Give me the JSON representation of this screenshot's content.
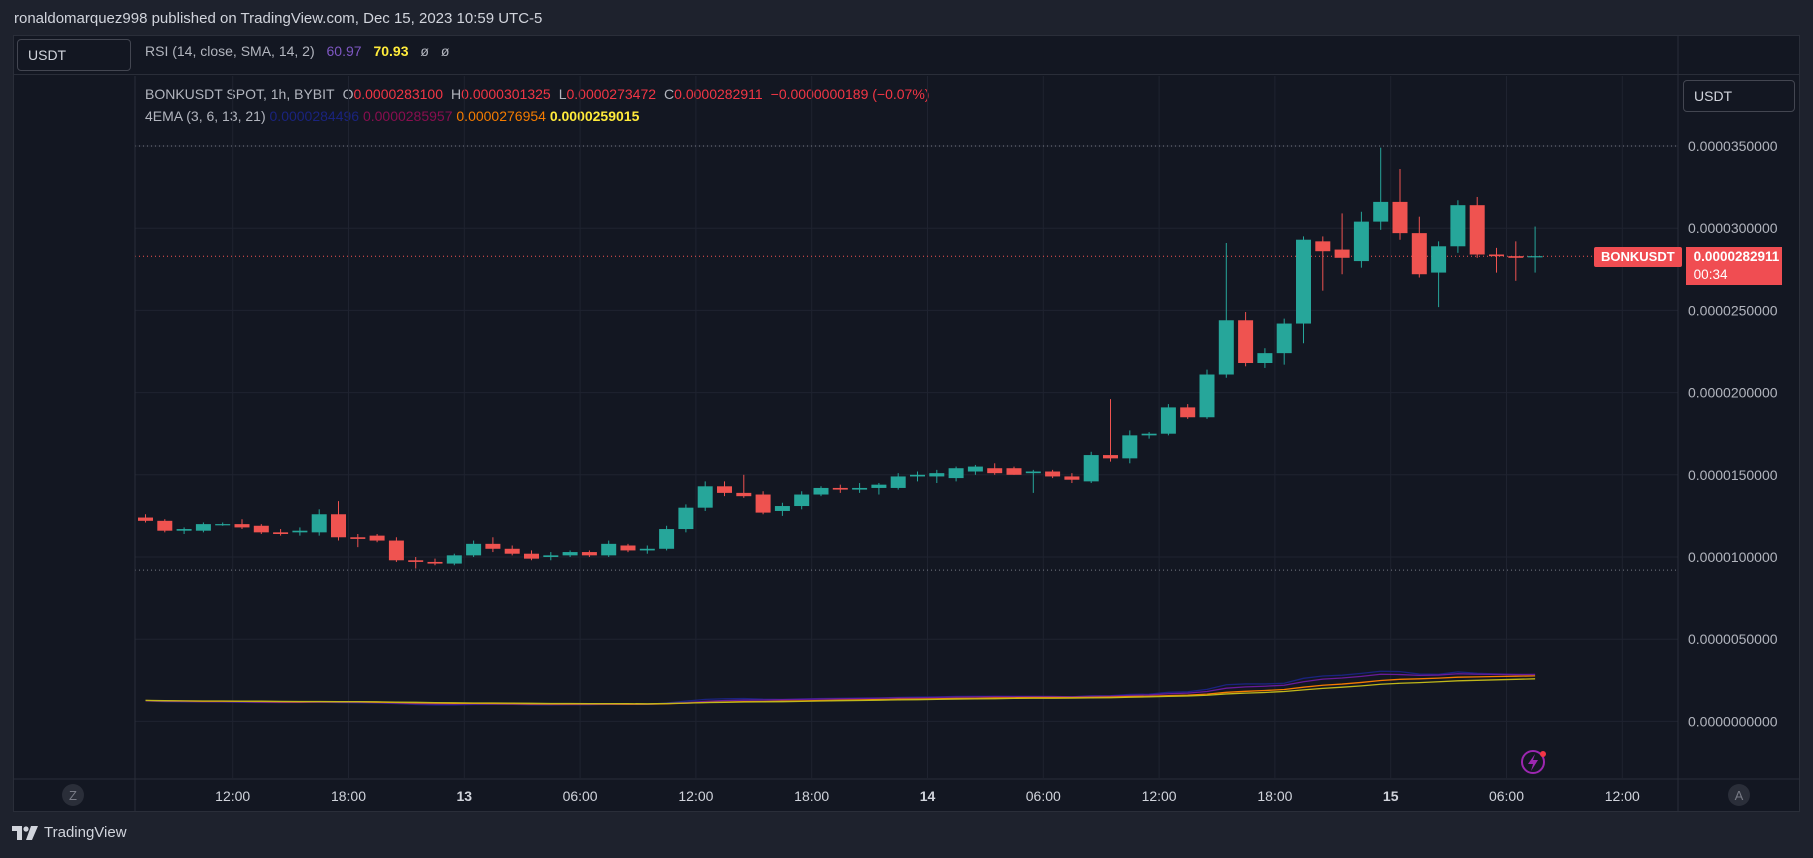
{
  "header": {
    "published": "ronaldomarquez998 published on TradingView.com, Dec 15, 2023 10:59 UTC-5"
  },
  "toolbar": {
    "left_currency": "USDT",
    "right_currency": "USDT"
  },
  "rsi": {
    "label": "RSI (14, close, SMA, 14, 2)",
    "value1": "60.97",
    "value2": "70.93",
    "value3": "ø",
    "value4": "ø",
    "value1_color": "#7e57c2",
    "value2_color": "#ffeb3b"
  },
  "legend": {
    "symbol": "BONKUSDT SPOT, 1h, BYBIT",
    "o_label": "O",
    "o_value": "0.0000283100",
    "h_label": "H",
    "h_value": "0.0000301325",
    "l_label": "L",
    "l_value": "0.0000273472",
    "c_label": "C",
    "c_value": "0.0000282911",
    "change": "−0.0000000189 (−0.07%)"
  },
  "ema": {
    "label": "4EMA (3, 6, 13, 21)",
    "values": [
      {
        "text": "0.0000284496",
        "color": "#1a237e"
      },
      {
        "text": "0.0000285957",
        "color": "#880e4f"
      },
      {
        "text": "0.0000276954",
        "color": "#f57c00"
      },
      {
        "text": "0.0000259015",
        "color": "#ffeb3b"
      }
    ]
  },
  "price_tag": {
    "symbol": "BONKUSDT",
    "price": "0.0000282911",
    "countdown": "00:34"
  },
  "controls": {
    "z_button": "Z",
    "a_button": "A"
  },
  "brand": {
    "name": "TradingView"
  },
  "colors": {
    "up": "#26a69a",
    "down": "#ef5350",
    "ema3": "#1a237e",
    "ema6": "#6a1b9a",
    "ema13": "#f57c00",
    "ema21": "#c0b81a"
  },
  "chart_data": {
    "type": "candlestick",
    "symbol": "BONKUSDT SPOT, 1h, BYBIT",
    "y_unit_scale": "1e-7",
    "ylim": [
      -6e-07,
      3.88e-05
    ],
    "y_ticks": [
      {
        "value": 3.5e-05,
        "label": "0.0000350000"
      },
      {
        "value": 3e-05,
        "label": "0.0000300000"
      },
      {
        "value": 2.5e-05,
        "label": "0.0000250000"
      },
      {
        "value": 2e-05,
        "label": "0.0000200000"
      },
      {
        "value": 1.5e-05,
        "label": "0.0000150000"
      },
      {
        "value": 1e-05,
        "label": "0.0000100000"
      },
      {
        "value": 5e-06,
        "label": "0.0000050000"
      },
      {
        "value": 0.0,
        "label": "0.0000000000"
      }
    ],
    "x_ticks": [
      {
        "time": "Dec 12 12:00",
        "label": "12:00",
        "bold": false
      },
      {
        "time": "Dec 12 18:00",
        "label": "18:00",
        "bold": false
      },
      {
        "time": "Dec 13 00:00",
        "label": "13",
        "bold": true
      },
      {
        "time": "Dec 13 06:00",
        "label": "06:00",
        "bold": false
      },
      {
        "time": "Dec 13 12:00",
        "label": "12:00",
        "bold": false
      },
      {
        "time": "Dec 13 18:00",
        "label": "18:00",
        "bold": false
      },
      {
        "time": "Dec 14 00:00",
        "label": "14",
        "bold": true
      },
      {
        "time": "Dec 14 06:00",
        "label": "06:00",
        "bold": false
      },
      {
        "time": "Dec 14 12:00",
        "label": "12:00",
        "bold": false
      },
      {
        "time": "Dec 14 18:00",
        "label": "18:00",
        "bold": false
      },
      {
        "time": "Dec 15 00:00",
        "label": "15",
        "bold": true
      },
      {
        "time": "Dec 15 06:00",
        "label": "06:00",
        "bold": false
      },
      {
        "time": "Dec 15 12:00",
        "label": "12:00",
        "bold": false
      }
    ],
    "first_bar": "Dec 12 08:00",
    "bar_interval": "1h",
    "candles": [
      {
        "o": 1.24e-05,
        "h": 1.26e-05,
        "l": 1.21e-05,
        "c": 1.22e-05
      },
      {
        "o": 1.22e-05,
        "h": 1.23e-05,
        "l": 1.15e-05,
        "c": 1.16e-05
      },
      {
        "o": 1.16e-05,
        "h": 1.18e-05,
        "l": 1.14e-05,
        "c": 1.17e-05
      },
      {
        "o": 1.16e-05,
        "h": 1.21e-05,
        "l": 1.15e-05,
        "c": 1.2e-05
      },
      {
        "o": 1.2e-05,
        "h": 1.21e-05,
        "l": 1.19e-05,
        "c": 1.2e-05
      },
      {
        "o": 1.2e-05,
        "h": 1.23e-05,
        "l": 1.17e-05,
        "c": 1.18e-05
      },
      {
        "o": 1.19e-05,
        "h": 1.2e-05,
        "l": 1.14e-05,
        "c": 1.15e-05
      },
      {
        "o": 1.15e-05,
        "h": 1.17e-05,
        "l": 1.13e-05,
        "c": 1.14e-05
      },
      {
        "o": 1.15e-05,
        "h": 1.18e-05,
        "l": 1.13e-05,
        "c": 1.16e-05
      },
      {
        "o": 1.15e-05,
        "h": 1.29e-05,
        "l": 1.13e-05,
        "c": 1.26e-05
      },
      {
        "o": 1.26e-05,
        "h": 1.34e-05,
        "l": 1.1e-05,
        "c": 1.12e-05
      },
      {
        "o": 1.12e-05,
        "h": 1.14e-05,
        "l": 1.06e-05,
        "c": 1.11e-05
      },
      {
        "o": 1.13e-05,
        "h": 1.14e-05,
        "l": 1.09e-05,
        "c": 1.1e-05
      },
      {
        "o": 1.1e-05,
        "h": 1.12e-05,
        "l": 9.7e-06,
        "c": 9.8e-06
      },
      {
        "o": 9.8e-06,
        "h": 1e-05,
        "l": 9.3e-06,
        "c": 9.7e-06
      },
      {
        "o": 9.7e-06,
        "h": 9.9e-06,
        "l": 9.5e-06,
        "c": 9.6e-06
      },
      {
        "o": 9.6e-06,
        "h": 1.02e-05,
        "l": 9.5e-06,
        "c": 1.01e-05
      },
      {
        "o": 1.01e-05,
        "h": 1.1e-05,
        "l": 1e-05,
        "c": 1.08e-05
      },
      {
        "o": 1.08e-05,
        "h": 1.12e-05,
        "l": 1.03e-05,
        "c": 1.05e-05
      },
      {
        "o": 1.05e-05,
        "h": 1.07e-05,
        "l": 1.01e-05,
        "c": 1.02e-05
      },
      {
        "o": 1.02e-05,
        "h": 1.04e-05,
        "l": 9.8e-06,
        "c": 9.9e-06
      },
      {
        "o": 1e-05,
        "h": 1.03e-05,
        "l": 9.8e-06,
        "c": 1.01e-05
      },
      {
        "o": 1.01e-05,
        "h": 1.04e-05,
        "l": 1e-05,
        "c": 1.03e-05
      },
      {
        "o": 1.03e-05,
        "h": 1.04e-05,
        "l": 1e-05,
        "c": 1.01e-05
      },
      {
        "o": 1.01e-05,
        "h": 1.1e-05,
        "l": 1e-05,
        "c": 1.08e-05
      },
      {
        "o": 1.07e-05,
        "h": 1.08e-05,
        "l": 1.03e-05,
        "c": 1.04e-05
      },
      {
        "o": 1.04e-05,
        "h": 1.07e-05,
        "l": 1.02e-05,
        "c": 1.05e-05
      },
      {
        "o": 1.05e-05,
        "h": 1.19e-05,
        "l": 1.04e-05,
        "c": 1.17e-05
      },
      {
        "o": 1.17e-05,
        "h": 1.32e-05,
        "l": 1.15e-05,
        "c": 1.3e-05
      },
      {
        "o": 1.3e-05,
        "h": 1.46e-05,
        "l": 1.28e-05,
        "c": 1.43e-05
      },
      {
        "o": 1.43e-05,
        "h": 1.46e-05,
        "l": 1.37e-05,
        "c": 1.39e-05
      },
      {
        "o": 1.39e-05,
        "h": 1.5e-05,
        "l": 1.36e-05,
        "c": 1.37e-05
      },
      {
        "o": 1.38e-05,
        "h": 1.4e-05,
        "l": 1.26e-05,
        "c": 1.27e-05
      },
      {
        "o": 1.28e-05,
        "h": 1.33e-05,
        "l": 1.25e-05,
        "c": 1.31e-05
      },
      {
        "o": 1.31e-05,
        "h": 1.4e-05,
        "l": 1.29e-05,
        "c": 1.38e-05
      },
      {
        "o": 1.38e-05,
        "h": 1.43e-05,
        "l": 1.37e-05,
        "c": 1.42e-05
      },
      {
        "o": 1.42e-05,
        "h": 1.44e-05,
        "l": 1.39e-05,
        "c": 1.41e-05
      },
      {
        "o": 1.41e-05,
        "h": 1.45e-05,
        "l": 1.39e-05,
        "c": 1.42e-05
      },
      {
        "o": 1.42e-05,
        "h": 1.45e-05,
        "l": 1.38e-05,
        "c": 1.44e-05
      },
      {
        "o": 1.42e-05,
        "h": 1.51e-05,
        "l": 1.41e-05,
        "c": 1.49e-05
      },
      {
        "o": 1.49e-05,
        "h": 1.52e-05,
        "l": 1.46e-05,
        "c": 1.5e-05
      },
      {
        "o": 1.49e-05,
        "h": 1.53e-05,
        "l": 1.45e-05,
        "c": 1.51e-05
      },
      {
        "o": 1.48e-05,
        "h": 1.55e-05,
        "l": 1.46e-05,
        "c": 1.54e-05
      },
      {
        "o": 1.52e-05,
        "h": 1.56e-05,
        "l": 1.5e-05,
        "c": 1.55e-05
      },
      {
        "o": 1.54e-05,
        "h": 1.57e-05,
        "l": 1.5e-05,
        "c": 1.51e-05
      },
      {
        "o": 1.54e-05,
        "h": 1.55e-05,
        "l": 1.5e-05,
        "c": 1.5e-05
      },
      {
        "o": 1.51e-05,
        "h": 1.53e-05,
        "l": 1.39e-05,
        "c": 1.52e-05
      },
      {
        "o": 1.52e-05,
        "h": 1.53e-05,
        "l": 1.48e-05,
        "c": 1.49e-05
      },
      {
        "o": 1.49e-05,
        "h": 1.51e-05,
        "l": 1.45e-05,
        "c": 1.47e-05
      },
      {
        "o": 1.46e-05,
        "h": 1.64e-05,
        "l": 1.45e-05,
        "c": 1.62e-05
      },
      {
        "o": 1.62e-05,
        "h": 1.96e-05,
        "l": 1.58e-05,
        "c": 1.6e-05
      },
      {
        "o": 1.6e-05,
        "h": 1.77e-05,
        "l": 1.57e-05,
        "c": 1.74e-05
      },
      {
        "o": 1.74e-05,
        "h": 1.76e-05,
        "l": 1.72e-05,
        "c": 1.75e-05
      },
      {
        "o": 1.75e-05,
        "h": 1.93e-05,
        "l": 1.74e-05,
        "c": 1.91e-05
      },
      {
        "o": 1.91e-05,
        "h": 1.93e-05,
        "l": 1.84e-05,
        "c": 1.85e-05
      },
      {
        "o": 1.85e-05,
        "h": 2.14e-05,
        "l": 1.84e-05,
        "c": 2.11e-05
      },
      {
        "o": 2.11e-05,
        "h": 2.91e-05,
        "l": 2.09e-05,
        "c": 2.44e-05
      },
      {
        "o": 2.44e-05,
        "h": 2.49e-05,
        "l": 2.16e-05,
        "c": 2.18e-05
      },
      {
        "o": 2.18e-05,
        "h": 2.27e-05,
        "l": 2.15e-05,
        "c": 2.24e-05
      },
      {
        "o": 2.24e-05,
        "h": 2.45e-05,
        "l": 2.17e-05,
        "c": 2.42e-05
      },
      {
        "o": 2.42e-05,
        "h": 2.95e-05,
        "l": 2.3e-05,
        "c": 2.93e-05
      },
      {
        "o": 2.92e-05,
        "h": 2.95e-05,
        "l": 2.62e-05,
        "c": 2.86e-05
      },
      {
        "o": 2.87e-05,
        "h": 3.09e-05,
        "l": 2.72e-05,
        "c": 2.82e-05
      },
      {
        "o": 2.8e-05,
        "h": 3.1e-05,
        "l": 2.76e-05,
        "c": 3.04e-05
      },
      {
        "o": 3.04e-05,
        "h": 3.49e-05,
        "l": 2.99e-05,
        "c": 3.16e-05
      },
      {
        "o": 3.16e-05,
        "h": 3.36e-05,
        "l": 2.93e-05,
        "c": 2.97e-05
      },
      {
        "o": 2.97e-05,
        "h": 3.07e-05,
        "l": 2.7e-05,
        "c": 2.72e-05
      },
      {
        "o": 2.73e-05,
        "h": 2.92e-05,
        "l": 2.52e-05,
        "c": 2.89e-05
      },
      {
        "o": 2.89e-05,
        "h": 3.17e-05,
        "l": 2.85e-05,
        "c": 3.14e-05
      },
      {
        "o": 3.14e-05,
        "h": 3.19e-05,
        "l": 2.82e-05,
        "c": 2.84e-05
      },
      {
        "o": 2.84e-05,
        "h": 2.88e-05,
        "l": 2.73e-05,
        "c": 2.83e-05
      },
      {
        "o": 2.83e-05,
        "h": 2.92e-05,
        "l": 2.68e-05,
        "c": 2.82e-05
      },
      {
        "o": 2.83e-05,
        "h": 3.01e-05,
        "l": 2.73e-05,
        "c": 2.83e-05
      }
    ],
    "ema_series": [
      {
        "name": "EMA 3",
        "color": "#1a237e",
        "values": [
          12.5,
          12.0,
          11.9,
          11.9,
          11.8,
          11.6,
          11.5,
          11.4,
          11.5,
          11.7,
          11.4,
          11.3,
          11.2,
          10.8,
          10.3,
          10.0,
          10.0,
          10.3,
          10.4,
          10.4,
          10.1,
          10.1,
          10.2,
          10.2,
          10.5,
          10.4,
          10.4,
          11.2,
          12.3,
          13.4,
          13.8,
          13.9,
          13.5,
          13.4,
          13.7,
          13.9,
          14.1,
          14.2,
          14.3,
          14.6,
          14.8,
          14.9,
          15.2,
          15.3,
          15.3,
          15.2,
          15.2,
          15.1,
          15.0,
          15.6,
          15.7,
          16.4,
          16.6,
          17.7,
          18.0,
          19.5,
          22.3,
          22.8,
          22.8,
          23.2,
          26.2,
          27.6,
          28.1,
          29.2,
          30.5,
          30.3,
          28.8,
          28.7,
          30.1,
          29.3,
          28.9,
          28.6,
          28.4
        ]
      },
      {
        "name": "EMA 6",
        "color": "#6a1b9a",
        "values": [
          12.6,
          12.3,
          12.1,
          12.0,
          12.0,
          11.9,
          11.7,
          11.6,
          11.6,
          11.8,
          11.7,
          11.6,
          11.4,
          11.1,
          10.8,
          10.6,
          10.5,
          10.6,
          10.6,
          10.5,
          10.4,
          10.3,
          10.3,
          10.3,
          10.4,
          10.4,
          10.4,
          10.8,
          11.4,
          12.2,
          12.7,
          12.9,
          13.0,
          13.2,
          13.4,
          13.6,
          13.8,
          13.9,
          14.1,
          14.3,
          14.4,
          14.6,
          14.8,
          15.0,
          15.1,
          15.1,
          15.1,
          15.1,
          15.0,
          15.3,
          15.4,
          15.8,
          16.1,
          16.8,
          17.2,
          18.2,
          20.2,
          21.0,
          21.4,
          22.0,
          24.1,
          25.7,
          26.4,
          27.4,
          28.7,
          28.5,
          28.0,
          28.2,
          29.0,
          28.7,
          28.6,
          28.5,
          28.6
        ]
      },
      {
        "name": "EMA 13",
        "color": "#f57c00",
        "values": [
          12.7,
          12.5,
          12.4,
          12.3,
          12.3,
          12.2,
          12.1,
          12.0,
          11.9,
          12.0,
          11.9,
          11.9,
          11.7,
          11.5,
          11.3,
          11.1,
          11.0,
          11.0,
          10.9,
          10.8,
          10.7,
          10.6,
          10.6,
          10.6,
          10.6,
          10.5,
          10.5,
          10.7,
          11.1,
          11.5,
          11.8,
          12.0,
          12.1,
          12.3,
          12.5,
          12.7,
          12.9,
          13.1,
          13.3,
          13.5,
          13.6,
          13.8,
          14.0,
          14.1,
          14.3,
          14.4,
          14.5,
          14.5,
          14.5,
          14.7,
          14.8,
          15.1,
          15.3,
          15.7,
          16.0,
          16.6,
          17.7,
          18.3,
          18.8,
          19.4,
          20.8,
          22.0,
          22.7,
          23.7,
          24.9,
          25.6,
          25.9,
          26.3,
          26.9,
          27.1,
          27.3,
          27.5,
          27.7
        ]
      },
      {
        "name": "EMA 21",
        "color": "#c0b81a",
        "values": [
          12.8,
          12.6,
          12.5,
          12.4,
          12.4,
          12.3,
          12.3,
          12.2,
          12.1,
          12.1,
          12.0,
          12.0,
          11.9,
          11.7,
          11.6,
          11.4,
          11.3,
          11.2,
          11.2,
          11.1,
          11.0,
          10.9,
          10.9,
          10.8,
          10.8,
          10.8,
          10.7,
          10.9,
          11.1,
          11.4,
          11.6,
          11.8,
          11.9,
          12.0,
          12.2,
          12.4,
          12.6,
          12.7,
          12.9,
          13.1,
          13.2,
          13.4,
          13.6,
          13.7,
          13.8,
          14.0,
          14.1,
          14.1,
          14.2,
          14.3,
          14.4,
          14.7,
          14.9,
          15.2,
          15.5,
          15.9,
          16.7,
          17.2,
          17.6,
          18.2,
          19.2,
          20.1,
          20.8,
          21.6,
          22.6,
          23.2,
          23.6,
          24.1,
          24.7,
          25.0,
          25.3,
          25.6,
          25.9
        ]
      }
    ],
    "last_price_line": 2.82911e-05,
    "dotted_high_line": 3.5e-05,
    "dotted_low_line": 9.2e-06
  }
}
